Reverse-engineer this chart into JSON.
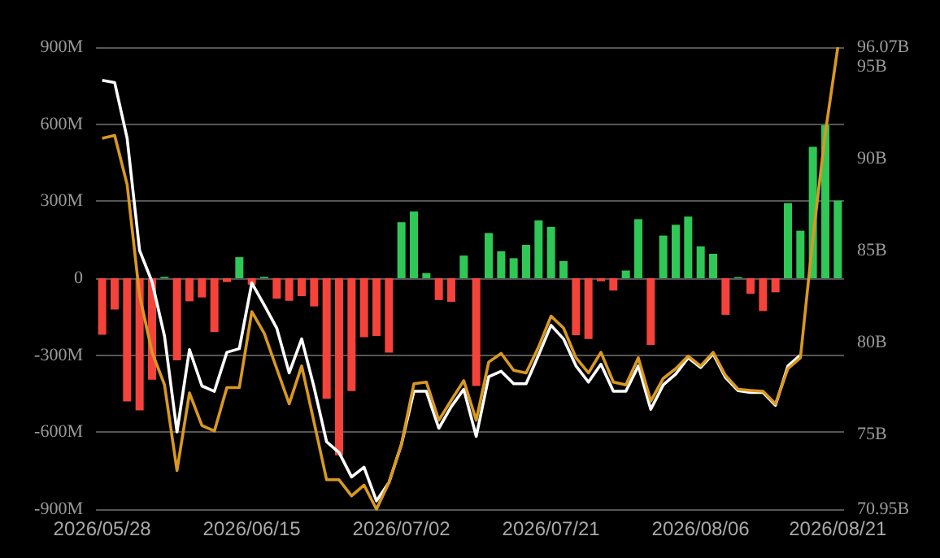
{
  "chart_data": {
    "type": "bar",
    "categories": [
      "2026/05/28",
      null,
      null,
      null,
      null,
      null,
      null,
      null,
      null,
      null,
      null,
      null,
      "2026/06/15",
      null,
      null,
      null,
      null,
      null,
      null,
      null,
      null,
      null,
      null,
      null,
      "2026/07/02",
      null,
      null,
      null,
      null,
      null,
      null,
      null,
      null,
      null,
      null,
      null,
      "2026/07/21",
      null,
      null,
      null,
      null,
      null,
      null,
      null,
      null,
      null,
      null,
      null,
      "2026/08/06",
      null,
      null,
      null,
      null,
      null,
      null,
      null,
      null,
      null,
      null,
      "2026/08/21"
    ],
    "series": [
      {
        "values": [
          -220,
          -122,
          -480,
          -515,
          -395,
          5,
          -320,
          -90,
          -75,
          -210,
          -15,
          82,
          -25,
          5,
          -80,
          -88,
          -70,
          -110,
          -470,
          -690,
          -440,
          -230,
          -225,
          -290,
          218,
          260,
          20,
          -85,
          -92,
          88,
          -420,
          176,
          105,
          78,
          130,
          225,
          200,
          67,
          -222,
          -237,
          -12,
          -48,
          30,
          230,
          -260,
          166,
          208,
          240,
          124,
          95,
          -143,
          4,
          -61,
          -128,
          -55,
          292,
          185,
          512,
          596,
          302
        ],
        "colors": [
          "#f4433a",
          "#f4433a",
          "#f4433a",
          "#f4433a",
          "#f4433a",
          "#2fc755",
          "#f4433a",
          "#f4433a",
          "#f4433a",
          "#f4433a",
          "#f4433a",
          "#2fc755",
          "#f4433a",
          "#2fc755",
          "#f4433a",
          "#f4433a",
          "#f4433a",
          "#f4433a",
          "#f4433a",
          "#f4433a",
          "#f4433a",
          "#f4433a",
          "#f4433a",
          "#f4433a",
          "#2fc755",
          "#2fc755",
          "#2fc755",
          "#f4433a",
          "#f4433a",
          "#2fc755",
          "#f4433a",
          "#2fc755",
          "#2fc755",
          "#2fc755",
          "#2fc755",
          "#2fc755",
          "#2fc755",
          "#2fc755",
          "#f4433a",
          "#f4433a",
          "#f4433a",
          "#f4433a",
          "#2fc755",
          "#2fc755",
          "#f4433a",
          "#2fc755",
          "#2fc755",
          "#2fc755",
          "#2fc755",
          "#2fc755",
          "#f4433a",
          "#2fc755",
          "#f4433a",
          "#f4433a",
          "#f4433a",
          "#2fc755",
          "#2fc755",
          "#2fc755",
          "#2fc755",
          "#2fc755"
        ]
      },
      {
        "type": "line",
        "axis": "y2",
        "color": "#ffffff",
        "values": [
          94.27,
          94.15,
          91.12,
          85.02,
          83.31,
          80.36,
          75.15,
          79.63,
          77.65,
          77.36,
          79.48,
          79.68,
          83.25,
          82.04,
          80.8,
          78.36,
          80.21,
          77.56,
          74.61,
          74.03,
          72.7,
          73.23,
          71.4,
          72.4,
          74.47,
          77.36,
          77.36,
          75.35,
          76.53,
          77.47,
          74.91,
          78.15,
          78.45,
          77.77,
          77.77,
          79.33,
          80.95,
          80.21,
          78.74,
          77.86,
          78.83,
          77.36,
          77.36,
          78.74,
          76.38,
          77.71,
          78.3,
          79.18,
          78.65,
          79.4,
          78.1,
          77.4,
          77.3,
          77.3,
          76.6,
          78.74,
          79.33,
          null,
          null,
          null
        ]
      },
      {
        "type": "line",
        "axis": "y2",
        "color": "#d9991f",
        "values": [
          91.12,
          91.27,
          88.61,
          82.57,
          79.48,
          77.71,
          73.05,
          77.27,
          75.5,
          75.2,
          77.56,
          77.56,
          81.69,
          80.51,
          78.59,
          76.68,
          78.74,
          75.65,
          72.55,
          72.55,
          71.67,
          72.26,
          70.95,
          72.4,
          74.47,
          77.77,
          77.86,
          75.79,
          76.88,
          77.94,
          75.79,
          78.95,
          79.42,
          78.5,
          78.36,
          79.77,
          81.45,
          80.8,
          79.18,
          78.36,
          79.48,
          77.86,
          77.71,
          79.18,
          76.83,
          78.06,
          78.59,
          79.27,
          78.74,
          79.48,
          78.21,
          77.47,
          77.41,
          77.36,
          76.68,
          78.59,
          79.18,
          85.67,
          91.41,
          96.07
        ]
      }
    ],
    "ylim": [
      -900,
      900
    ],
    "yticks": [
      {
        "value": -900,
        "label": "-900M"
      },
      {
        "value": -600,
        "label": "-600M"
      },
      {
        "value": -300,
        "label": "-300M"
      },
      0,
      {
        "value": 300,
        "label": "300M"
      },
      {
        "value": 600,
        "label": "600M"
      },
      {
        "value": 900,
        "label": "900M"
      }
    ],
    "y2lim": [
      70.95,
      96.07
    ],
    "y2ticks": [
      {
        "value": 70.95,
        "label": "70.95B"
      },
      {
        "value": 75,
        "label": "75B"
      },
      {
        "value": 80,
        "label": "80B"
      },
      {
        "value": 85,
        "label": "85B"
      },
      {
        "value": 90,
        "label": "90B"
      },
      {
        "value": 95,
        "label": "95B"
      },
      {
        "value": 96.07,
        "label": "96.07B"
      }
    ],
    "grid": "y",
    "marker": "none",
    "line_style": "solid"
  }
}
